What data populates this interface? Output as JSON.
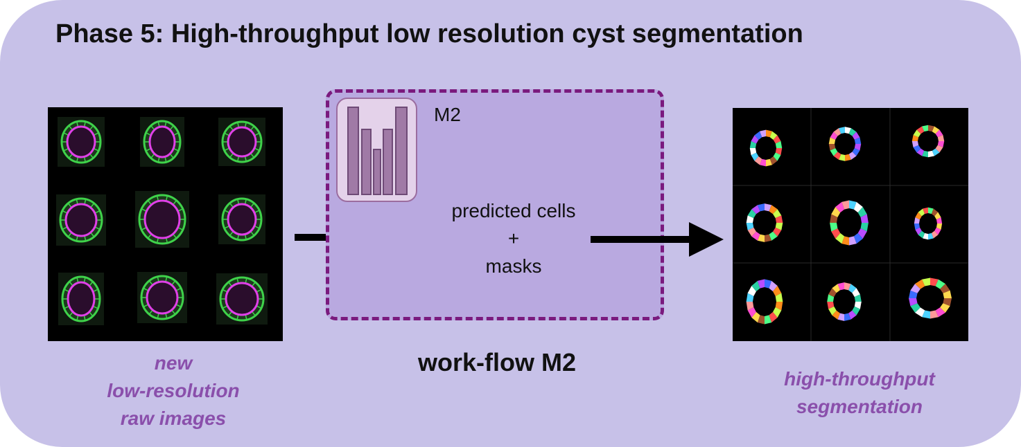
{
  "title": "Phase 5: High-throughput low resolution cyst segmentation",
  "raw_images": {
    "caption_line1": "new",
    "caption_line2": "low-resolution",
    "caption_line3": "raw images"
  },
  "workflow": {
    "model_label": "M2",
    "output_line1": "predicted cells",
    "output_line2": "+",
    "output_line3": "masks",
    "label": "work-flow M2"
  },
  "segmentation": {
    "caption_line1": "high-throughput",
    "caption_line2": "segmentation"
  },
  "colors": {
    "panel_bg": "#c7c1e8",
    "workflow_bg": "#b9a9e0",
    "workflow_border": "#7a1a7e",
    "caption": "#8a4fab",
    "membrane_green": "#3fd24a",
    "lumen_magenta": "#e040e8"
  }
}
